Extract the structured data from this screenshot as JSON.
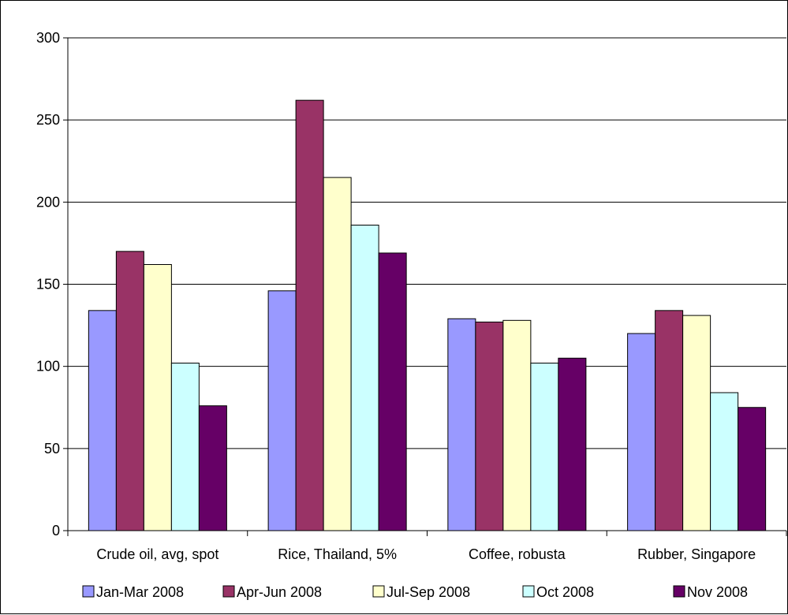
{
  "chart_data": {
    "type": "bar",
    "title": "",
    "xlabel": "",
    "ylabel": "",
    "ylim": [
      0,
      300
    ],
    "yticks": [
      0,
      50,
      100,
      150,
      200,
      250,
      300
    ],
    "grid": true,
    "legend_position": "bottom",
    "categories": [
      "Crude oil, avg, spot",
      "Rice, Thailand, 5%",
      "Coffee, robusta",
      "Rubber, Singapore"
    ],
    "series": [
      {
        "name": "Jan-Mar 2008",
        "color": "#9999ff",
        "values": [
          134,
          146,
          129,
          120
        ]
      },
      {
        "name": "Apr-Jun 2008",
        "color": "#993366",
        "values": [
          170,
          262,
          127,
          134
        ]
      },
      {
        "name": "Jul-Sep 2008",
        "color": "#ffffcc",
        "values": [
          162,
          215,
          128,
          131
        ]
      },
      {
        "name": "Oct 2008",
        "color": "#ccffff",
        "values": [
          102,
          186,
          102,
          84
        ]
      },
      {
        "name": "Nov 2008",
        "color": "#660066",
        "values": [
          76,
          169,
          105,
          75
        ]
      }
    ]
  }
}
